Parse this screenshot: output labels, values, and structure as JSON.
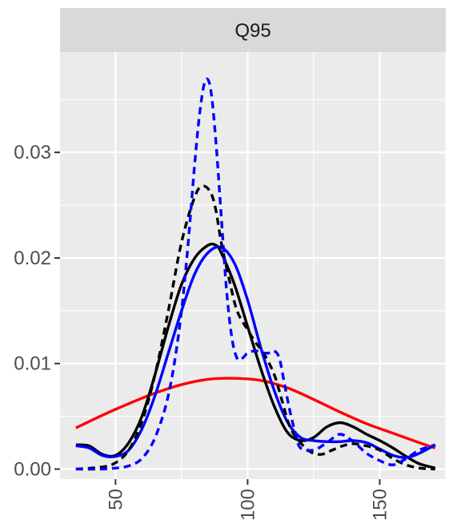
{
  "chart_data": {
    "type": "line",
    "title": "",
    "facet_label": "Q95",
    "xlabel": "",
    "ylabel": "",
    "xlim": [
      29,
      175
    ],
    "ylim": [
      -0.00095,
      0.0395
    ],
    "x_ticks": [
      50,
      100,
      150
    ],
    "x_tick_labels": [
      "50",
      "100",
      "150"
    ],
    "y_ticks": [
      0.0,
      0.01,
      0.02,
      0.03
    ],
    "y_tick_labels": [
      "0.00",
      "0.01",
      "0.02",
      "0.03"
    ],
    "grid": true,
    "legend": "none",
    "series": [
      {
        "color": "#ff0000",
        "dash": "solid",
        "x": [
          35,
          45,
          55,
          65,
          75,
          85,
          95,
          105,
          115,
          125,
          135,
          145,
          155,
          165,
          171
        ],
        "y": [
          0.0039,
          0.0051,
          0.0062,
          0.0072,
          0.008,
          0.0085,
          0.0086,
          0.0084,
          0.0077,
          0.0066,
          0.0054,
          0.0043,
          0.0034,
          0.0025,
          0.002
        ]
      },
      {
        "color": "#000000",
        "dash": "solid",
        "x": [
          35,
          40,
          45,
          50,
          55,
          60,
          65,
          70,
          75,
          80,
          85,
          88,
          90,
          95,
          100,
          105,
          110,
          115,
          120,
          125,
          130,
          135,
          140,
          145,
          150,
          155,
          160,
          165,
          171
        ],
        "y": [
          0.0023,
          0.0022,
          0.0014,
          0.0013,
          0.0025,
          0.005,
          0.009,
          0.0135,
          0.0175,
          0.02,
          0.0212,
          0.0212,
          0.0205,
          0.0175,
          0.0135,
          0.0095,
          0.006,
          0.0035,
          0.0027,
          0.003,
          0.004,
          0.0044,
          0.004,
          0.0033,
          0.0027,
          0.002,
          0.0012,
          0.0005,
          0.0001
        ]
      },
      {
        "color": "#0000ff",
        "dash": "solid",
        "x": [
          35,
          40,
          45,
          50,
          55,
          60,
          65,
          70,
          75,
          80,
          85,
          90,
          95,
          100,
          105,
          110,
          115,
          120,
          125,
          130,
          135,
          140,
          145,
          150,
          155,
          160,
          165,
          171
        ],
        "y": [
          0.0022,
          0.002,
          0.0013,
          0.0012,
          0.0018,
          0.0038,
          0.007,
          0.011,
          0.015,
          0.0185,
          0.0205,
          0.021,
          0.0195,
          0.016,
          0.0115,
          0.0075,
          0.0045,
          0.003,
          0.0027,
          0.0026,
          0.0026,
          0.0027,
          0.0025,
          0.0019,
          0.0013,
          0.0011,
          0.0015,
          0.0023
        ]
      },
      {
        "color": "#000000",
        "dash": "dashed",
        "x": [
          35,
          45,
          50,
          55,
          60,
          65,
          70,
          75,
          80,
          83,
          86,
          88,
          90,
          93,
          96,
          100,
          103,
          106,
          110,
          113,
          116,
          120,
          124,
          128,
          132,
          136,
          140,
          145,
          150,
          155,
          160,
          165,
          171
        ],
        "y": [
          0.0,
          0.0002,
          0.0006,
          0.0018,
          0.0045,
          0.009,
          0.015,
          0.0215,
          0.0258,
          0.0268,
          0.0262,
          0.0245,
          0.0215,
          0.018,
          0.015,
          0.0132,
          0.012,
          0.011,
          0.009,
          0.0065,
          0.004,
          0.0025,
          0.0016,
          0.0014,
          0.0018,
          0.0022,
          0.0024,
          0.0022,
          0.0018,
          0.001,
          0.0004,
          0.0001,
          0.0
        ]
      },
      {
        "color": "#0000ff",
        "dash": "dashed",
        "x": [
          35,
          45,
          50,
          55,
          60,
          65,
          70,
          74,
          77,
          80,
          82,
          84,
          86,
          88,
          90,
          92,
          94,
          96,
          98,
          100,
          103,
          106,
          108,
          110,
          112,
          114,
          116,
          118,
          120,
          125,
          130,
          135,
          140,
          145,
          150,
          155,
          160,
          165,
          171
        ],
        "y": [
          0.0,
          0.0,
          0.0001,
          0.0003,
          0.001,
          0.003,
          0.007,
          0.013,
          0.02,
          0.029,
          0.034,
          0.0368,
          0.036,
          0.031,
          0.024,
          0.017,
          0.0125,
          0.0105,
          0.0105,
          0.011,
          0.0112,
          0.011,
          0.011,
          0.0112,
          0.0105,
          0.008,
          0.0055,
          0.0035,
          0.002,
          0.0018,
          0.0025,
          0.0033,
          0.0026,
          0.0015,
          0.0008,
          0.0004,
          0.001,
          0.0018,
          0.0023
        ]
      }
    ]
  }
}
